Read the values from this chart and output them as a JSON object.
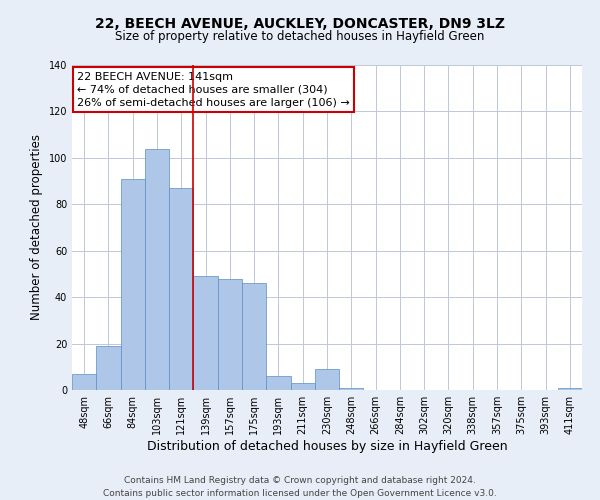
{
  "title": "22, BEECH AVENUE, AUCKLEY, DONCASTER, DN9 3LZ",
  "subtitle": "Size of property relative to detached houses in Hayfield Green",
  "xlabel": "Distribution of detached houses by size in Hayfield Green",
  "ylabel": "Number of detached properties",
  "bin_labels": [
    "48sqm",
    "66sqm",
    "84sqm",
    "103sqm",
    "121sqm",
    "139sqm",
    "157sqm",
    "175sqm",
    "193sqm",
    "211sqm",
    "230sqm",
    "248sqm",
    "266sqm",
    "284sqm",
    "302sqm",
    "320sqm",
    "338sqm",
    "357sqm",
    "375sqm",
    "393sqm",
    "411sqm"
  ],
  "bar_values": [
    7,
    19,
    91,
    104,
    87,
    49,
    48,
    46,
    6,
    3,
    9,
    1,
    0,
    0,
    0,
    0,
    0,
    0,
    0,
    0,
    1
  ],
  "bar_color": "#aec6e8",
  "bar_edge_color": "#5a8fc2",
  "ylim": [
    0,
    140
  ],
  "yticks": [
    0,
    20,
    40,
    60,
    80,
    100,
    120,
    140
  ],
  "red_line_color": "#cc0000",
  "annotation_line1": "22 BEECH AVENUE: 141sqm",
  "annotation_line2": "← 74% of detached houses are smaller (304)",
  "annotation_line3": "26% of semi-detached houses are larger (106) →",
  "annotation_box_color": "#ffffff",
  "annotation_box_edge_color": "#cc0000",
  "footer_text": "Contains HM Land Registry data © Crown copyright and database right 2024.\nContains public sector information licensed under the Open Government Licence v3.0.",
  "bg_color": "#e8eef7",
  "plot_bg_color": "#ffffff",
  "grid_color": "#c0c8d8",
  "title_fontsize": 10,
  "subtitle_fontsize": 8.5,
  "xlabel_fontsize": 9,
  "ylabel_fontsize": 8.5,
  "tick_fontsize": 7,
  "annotation_fontsize": 8,
  "footer_fontsize": 6.5,
  "red_line_x": 4.5
}
